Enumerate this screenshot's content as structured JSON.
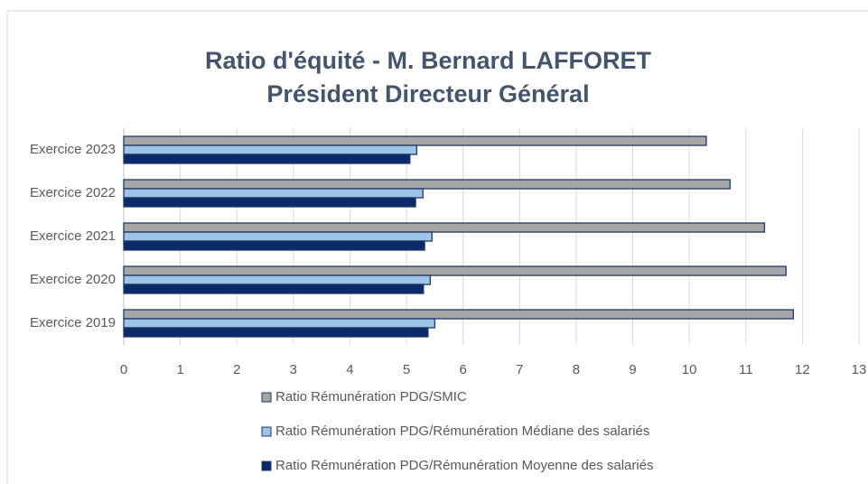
{
  "chart_data": {
    "type": "bar",
    "orientation": "horizontal",
    "title": [
      "Ratio d'équité - M. Bernard LAFFORET",
      "Président Directeur Général"
    ],
    "categories": [
      "Exercice 2023",
      "Exercice 2022",
      "Exercice 2021",
      "Exercice 2020",
      "Exercice 2019"
    ],
    "series": [
      {
        "name": "Ratio Rémunération PDG/SMIC",
        "color": "#a6a6a6",
        "values": [
          10.3,
          10.72,
          11.33,
          11.71,
          11.84
        ]
      },
      {
        "name": "Ratio Rémunération PDG/Rémunération Médiane des salariés",
        "color": "#9dc3e6",
        "values": [
          5.18,
          5.29,
          5.45,
          5.42,
          5.5
        ]
      },
      {
        "name": "Ratio Rémunération PDG/Rémunération Moyenne des salariés",
        "color": "#0c2a6b",
        "values": [
          5.06,
          5.16,
          5.32,
          5.3,
          5.38
        ]
      }
    ],
    "xlim": [
      0,
      13
    ],
    "xticks": [
      0,
      1,
      2,
      3,
      4,
      5,
      6,
      7,
      8,
      9,
      10,
      11,
      12,
      13
    ],
    "grid": true,
    "legend": "bottom"
  }
}
